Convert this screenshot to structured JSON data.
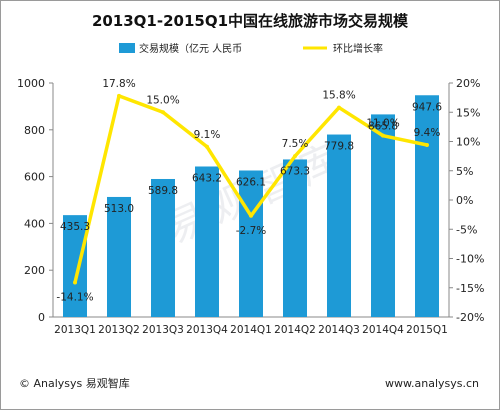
{
  "chart_data": {
    "type": "bar+line",
    "title": "2013Q1-2015Q1中国在线旅游市场交易规模",
    "categories": [
      "2013Q1",
      "2013Q2",
      "2013Q3",
      "2013Q4",
      "2014Q1",
      "2014Q2",
      "2014Q3",
      "2014Q4",
      "2015Q1"
    ],
    "series": [
      {
        "name": "交易规模（亿元 人民币",
        "type": "bar",
        "axis": "left",
        "color": "#1e9ad6",
        "values": [
          435.3,
          513.0,
          589.8,
          643.2,
          626.1,
          673.3,
          779.8,
          865.8,
          947.6
        ],
        "labels": [
          "435.3",
          "513.0",
          "589.8",
          "643.2",
          "626.1",
          "673.3",
          "779.8",
          "865.8",
          "947.6"
        ]
      },
      {
        "name": "环比增长率",
        "type": "line",
        "axis": "right",
        "color": "#ffe600",
        "values": [
          -14.1,
          17.8,
          15.0,
          9.1,
          -2.7,
          7.5,
          15.8,
          11.0,
          9.4
        ],
        "labels": [
          "-14.1%",
          "17.8%",
          "15.0%",
          "9.1%",
          "-2.7%",
          "7.5%",
          "15.8%",
          "11.0%",
          "9.4%"
        ]
      }
    ],
    "y_left": {
      "ylim": [
        0,
        1000
      ],
      "ticks": [
        "0",
        "200",
        "400",
        "600",
        "800",
        "1000"
      ]
    },
    "y_right": {
      "ylim": [
        -20,
        20
      ],
      "ticks": [
        "-20%",
        "-15%",
        "-10%",
        "-5%",
        "0%",
        "5%",
        "10%",
        "15%",
        "20%"
      ]
    },
    "legend_position": "top",
    "grid": false
  },
  "watermark": "易观智库",
  "footer": {
    "left": "© Analysys 易观智库",
    "right": "www.analysys.cn"
  }
}
